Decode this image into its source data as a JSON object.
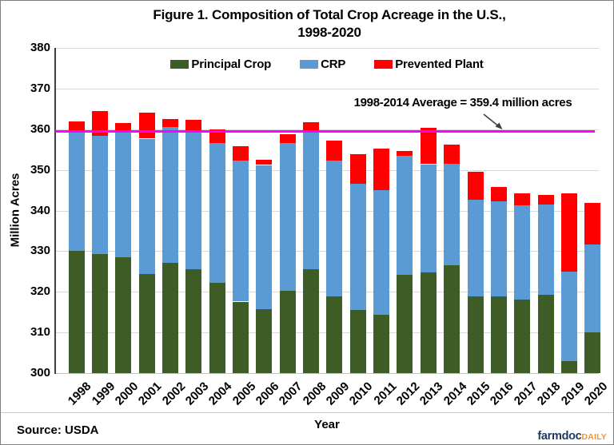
{
  "title": {
    "line1": "Figure 1. Composition of Total Crop Acreage in the U.S.,",
    "line2": "1998-2020"
  },
  "chart_data": {
    "type": "bar",
    "stacked": true,
    "title": "Figure 1. Composition of Total Crop Acreage in the U.S., 1998-2020",
    "xlabel": "Year",
    "ylabel": "Million Acres",
    "ylim": [
      300,
      380
    ],
    "ytick_step": 10,
    "grid": true,
    "legend_position": "top-center",
    "categories": [
      "1998",
      "1999",
      "2000",
      "2001",
      "2002",
      "2003",
      "2004",
      "2005",
      "2006",
      "2007",
      "2008",
      "2009",
      "2010",
      "2011",
      "2012",
      "2013",
      "2014",
      "2015",
      "2016",
      "2017",
      "2018",
      "2019",
      "2020"
    ],
    "series": [
      {
        "name": "Principal Crop",
        "color": "#3e5c26",
        "values": [
          330.0,
          329.2,
          328.5,
          324.4,
          327.2,
          325.5,
          322.2,
          317.6,
          315.7,
          320.2,
          325.6,
          318.8,
          315.5,
          314.3,
          324.1,
          324.8,
          326.5,
          318.9,
          318.9,
          318.1,
          319.2,
          303.0,
          310.0
        ]
      },
      {
        "name": "CRP",
        "color": "#5b9bd5",
        "values": [
          29.7,
          29.1,
          30.7,
          33.3,
          33.3,
          33.7,
          34.5,
          34.6,
          35.5,
          36.5,
          33.9,
          33.4,
          31.0,
          30.7,
          29.3,
          26.6,
          25.0,
          23.8,
          23.4,
          23.2,
          22.3,
          22.0,
          21.7
        ]
      },
      {
        "name": "Prevented Plant",
        "color": "#ff0000",
        "values": [
          2.3,
          6.1,
          2.3,
          6.4,
          2.0,
          3.1,
          3.3,
          3.7,
          1.3,
          2.1,
          2.2,
          5.0,
          7.4,
          10.2,
          1.2,
          8.9,
          4.7,
          6.9,
          3.5,
          2.9,
          2.3,
          19.3,
          10.1
        ]
      }
    ],
    "reference_line": {
      "value": 359.4,
      "color": "#ff00ff",
      "label": "1998-2014 Average = 359.4 million acres"
    }
  },
  "footer": {
    "source": "Source: USDA",
    "logo": {
      "farmdoc": "farmdoc",
      "farmdoc_color": "#1e3a5f",
      "daily": "DAILY",
      "daily_color": "#f7941d"
    }
  }
}
